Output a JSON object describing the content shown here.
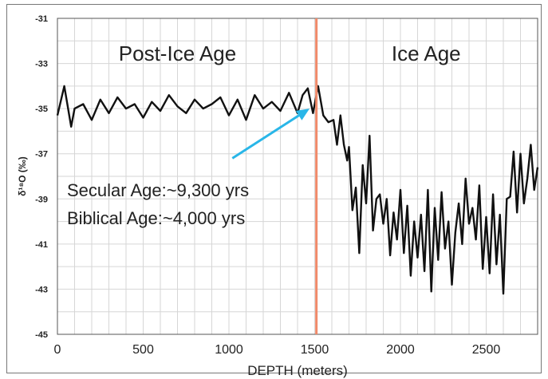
{
  "chart_data": {
    "type": "line",
    "xlabel": "DEPTH (meters)",
    "ylabel": "δ¹⁸O (‰)",
    "xlim": [
      0,
      2800
    ],
    "ylim": [
      -45,
      -31
    ],
    "y_inverted": true,
    "x_ticks": [
      0,
      500,
      1000,
      1500,
      2000,
      2500
    ],
    "y_ticks": [
      -31,
      -33,
      -35,
      -37,
      -39,
      -41,
      -43,
      -45
    ],
    "grid": true,
    "colors": {
      "line": "#111111",
      "marker": "#f08a6a",
      "arrow": "#29b6e8",
      "grid": "#d6d6d6"
    },
    "region_labels": [
      {
        "text": "Post-Ice Age",
        "x": 700
      },
      {
        "text": "Ice Age",
        "x": 2150
      }
    ],
    "marker_line": {
      "x": 1510
    },
    "annotation": {
      "lines": [
        "Secular Age:~9,300 yrs",
        "Biblical Age:~4,000 yrs"
      ],
      "arrow_from": {
        "x": 1020,
        "y": -37.2
      },
      "arrow_to": {
        "x": 1470,
        "y": -35.0
      }
    },
    "series": [
      {
        "x": [
          0,
          40,
          80,
          100,
          150,
          200,
          250,
          300,
          350,
          400,
          450,
          500,
          550,
          600,
          650,
          700,
          750,
          800,
          850,
          900,
          950,
          1000,
          1050,
          1100,
          1150,
          1200,
          1250,
          1300,
          1350,
          1400,
          1430,
          1460,
          1490,
          1520,
          1550,
          1580,
          1610,
          1630,
          1650,
          1670,
          1690,
          1700,
          1720,
          1740,
          1760,
          1780,
          1800,
          1820,
          1840,
          1860,
          1880,
          1900,
          1920,
          1940,
          1960,
          1980,
          2000,
          2020,
          2040,
          2060,
          2080,
          2100,
          2120,
          2140,
          2160,
          2180,
          2200,
          2220,
          2240,
          2260,
          2280,
          2300,
          2320,
          2340,
          2360,
          2380,
          2400,
          2420,
          2440,
          2460,
          2480,
          2500,
          2520,
          2540,
          2560,
          2580,
          2600,
          2620,
          2640,
          2660,
          2680,
          2700,
          2720,
          2740,
          2760,
          2780,
          2800
        ],
        "y": [
          -35.3,
          -34.0,
          -35.8,
          -35.0,
          -34.8,
          -35.5,
          -34.6,
          -35.2,
          -34.5,
          -35.0,
          -34.8,
          -35.4,
          -34.7,
          -35.1,
          -34.4,
          -34.9,
          -35.2,
          -34.6,
          -35.0,
          -34.8,
          -34.5,
          -35.3,
          -34.6,
          -35.5,
          -34.4,
          -35.0,
          -34.7,
          -35.1,
          -34.3,
          -35.2,
          -34.4,
          -34.1,
          -35.2,
          -34.0,
          -35.3,
          -35.6,
          -35.5,
          -36.6,
          -35.3,
          -36.6,
          -37.3,
          -36.7,
          -39.5,
          -38.5,
          -41.4,
          -37.5,
          -39.2,
          -36.2,
          -40.4,
          -39.0,
          -38.8,
          -40.1,
          -39.0,
          -41.5,
          -39.6,
          -40.8,
          -38.6,
          -41.4,
          -39.3,
          -42.4,
          -40.0,
          -41.6,
          -39.7,
          -42.2,
          -38.6,
          -43.1,
          -39.4,
          -41.7,
          -38.7,
          -41.2,
          -40.0,
          -42.8,
          -40.5,
          -39.2,
          -41.0,
          -38.1,
          -40.1,
          -39.4,
          -40.8,
          -38.4,
          -42.1,
          -39.8,
          -42.3,
          -38.8,
          -41.9,
          -39.7,
          -43.2,
          -39.0,
          -38.9,
          -36.9,
          -39.6,
          -37.0,
          -39.2,
          -38.1,
          -36.6,
          -38.6,
          -37.6
        ]
      }
    ]
  }
}
